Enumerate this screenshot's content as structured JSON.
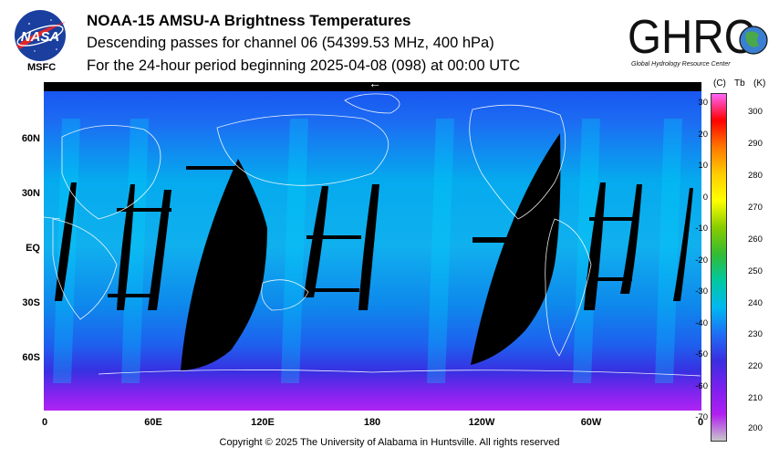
{
  "header": {
    "title": "NOAA-15 AMSU-A Brightness Temperatures",
    "line2": "Descending passes for channel 06 (54399.53 MHz, 400 hPa)",
    "line3": "For the 24-hour period beginning 2025-04-08 (098) at 00:00 UTC"
  },
  "logos": {
    "nasa_text": "NASA",
    "msfc_label": "MSFC",
    "ghrc_text": "GHRC",
    "ghrc_caption": "Global Hydrology Resource Center"
  },
  "map": {
    "lat_labels": [
      "60N",
      "30N",
      "EQ",
      "30S",
      "60S"
    ],
    "lon_labels": [
      "0",
      "60E",
      "120E",
      "180",
      "120W",
      "60W",
      "0"
    ],
    "arrow_glyph": "←",
    "colors": {
      "warm_top": "#00b8f0",
      "mid": "#1f6ef5",
      "cold": "#4020e0",
      "polar": "#a020f0",
      "gap": "#000000",
      "coast": "#ffffff"
    }
  },
  "colorbar": {
    "header_c": "(C)",
    "header_tb": "Tb",
    "header_k": "(K)",
    "celsius_ticks": [
      "30",
      "20",
      "10",
      "0",
      "-10",
      "-20",
      "-30",
      "-40",
      "-50",
      "-60",
      "-70"
    ],
    "kelvin_ticks": [
      "300",
      "290",
      "280",
      "270",
      "260",
      "250",
      "240",
      "230",
      "220",
      "210",
      "200"
    ],
    "gradient": [
      "#ff66ff",
      "#ff0000",
      "#ff7700",
      "#ffcc00",
      "#ffff00",
      "#88cc00",
      "#33bb33",
      "#00c8a0",
      "#00b8f0",
      "#1f6ef5",
      "#3a2ee0",
      "#7a20f0",
      "#b020f0",
      "#c8c8c8"
    ]
  },
  "footer": {
    "copyright": "Copyright © 2025 The University of Alabama in Huntsville.  All rights reserved"
  }
}
